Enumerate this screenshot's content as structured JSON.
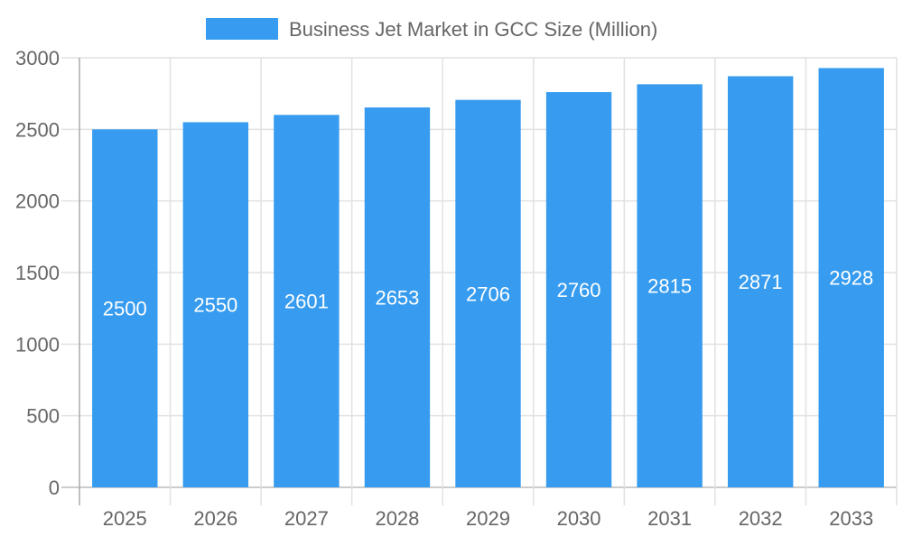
{
  "chart_data": {
    "type": "bar",
    "title": "",
    "xlabel": "",
    "ylabel": "",
    "categories": [
      "2025",
      "2026",
      "2027",
      "2028",
      "2029",
      "2030",
      "2031",
      "2032",
      "2033"
    ],
    "series": [
      {
        "name": "Business Jet Market in GCC Size (Million)",
        "values": [
          2500,
          2550,
          2601,
          2653,
          2706,
          2760,
          2815,
          2871,
          2928
        ],
        "color": "#379cef"
      }
    ],
    "ylim": [
      0,
      3000
    ],
    "yticks": [
      0,
      500,
      1000,
      1500,
      2000,
      2500,
      3000
    ],
    "grid": true,
    "legend": "top",
    "data_labels": "inside-center"
  }
}
